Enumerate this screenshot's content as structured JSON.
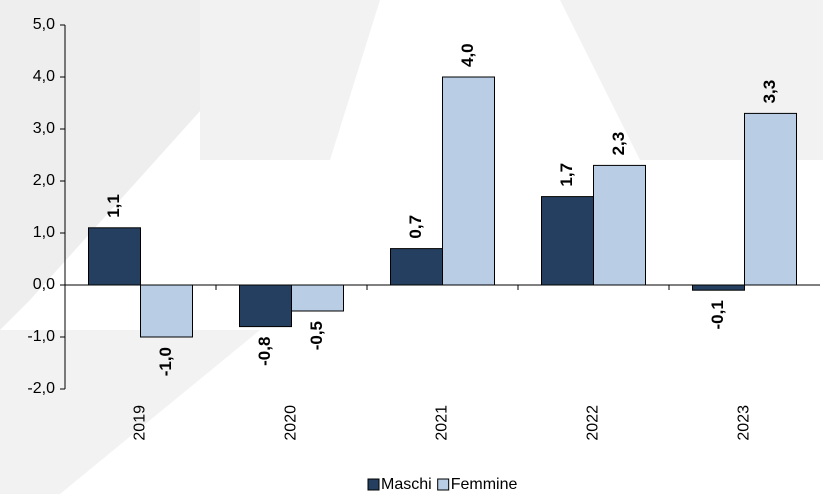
{
  "chart_data": {
    "type": "bar",
    "categories": [
      "2019",
      "2020",
      "2021",
      "2022",
      "2023"
    ],
    "series": [
      {
        "name": "Maschi",
        "color": "#243f60",
        "values": [
          1.1,
          -0.8,
          0.7,
          1.7,
          -0.1
        ],
        "value_labels": [
          "1,1",
          "-0,8",
          "0,7",
          "1,7",
          "-0,1"
        ]
      },
      {
        "name": "Femmine",
        "color": "#b9cde5",
        "values": [
          -1.0,
          -0.5,
          4.0,
          2.3,
          3.3
        ],
        "value_labels": [
          "-1,0",
          "-0,5",
          "4,0",
          "2,3",
          "3,3"
        ]
      }
    ],
    "ylim": [
      -2.0,
      5.0
    ],
    "yticks": [
      {
        "value": -2.0,
        "label": "-2,0"
      },
      {
        "value": -1.0,
        "label": "-1,0"
      },
      {
        "value": 0.0,
        "label": "0,0"
      },
      {
        "value": 1.0,
        "label": "1,0"
      },
      {
        "value": 2.0,
        "label": "2,0"
      },
      {
        "value": 3.0,
        "label": "3,0"
      },
      {
        "value": 4.0,
        "label": "4,0"
      },
      {
        "value": 5.0,
        "label": "5,0"
      }
    ],
    "legend": "bottom"
  }
}
